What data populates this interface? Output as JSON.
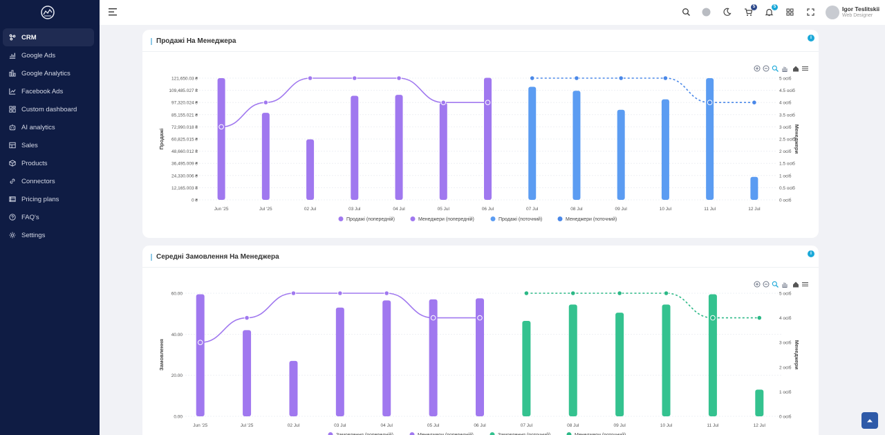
{
  "sidebar": {
    "items": [
      {
        "label": "CRM",
        "icon": "crm-icon",
        "active": true
      },
      {
        "label": "Google Ads",
        "icon": "bar-chart-icon"
      },
      {
        "label": "Google Analytics",
        "icon": "analytics-icon"
      },
      {
        "label": "Facebook Ads",
        "icon": "trend-icon"
      },
      {
        "label": "Custom dashboard",
        "icon": "dashboard-icon"
      },
      {
        "label": "AI analytics",
        "icon": "robot-icon"
      },
      {
        "label": "Sales",
        "icon": "sales-icon"
      },
      {
        "label": "Products",
        "icon": "box-icon"
      },
      {
        "label": "Connectors",
        "icon": "link-icon"
      },
      {
        "label": "Pricing plans",
        "icon": "pricing-icon"
      },
      {
        "label": "FAQ's",
        "icon": "question-icon"
      },
      {
        "label": "Settings",
        "icon": "gear-icon"
      }
    ]
  },
  "header": {
    "cart_badge": "5",
    "bell_badge": "5",
    "user_name": "Igor Teslitskii",
    "user_role": "Web Designer"
  },
  "chart_data": [
    {
      "type": "bar",
      "title": "Продажі На Менеджера",
      "ylabel": "Продажі",
      "y2label": "Менеджери",
      "categories": [
        "Jun '25",
        "Jul '25",
        "02 Jul",
        "03 Jul",
        "04 Jul",
        "05 Jul",
        "06 Jul",
        "07 Jul",
        "08 Jul",
        "09 Jul",
        "10 Jul",
        "11 Jul",
        "12 Jul"
      ],
      "y_ticks": [
        "0 ₴",
        "12,165.003 ₴",
        "24,330.006 ₴",
        "36,495.009 ₴",
        "48,660.012 ₴",
        "60,825.015 ₴",
        "72,990.018 ₴",
        "85,155.021 ₴",
        "97,320.024 ₴",
        "109,485.027 ₴",
        "121,650.03 ₴"
      ],
      "y2_ticks": [
        "0 осіб",
        "0.5 осіб",
        "1 осіб",
        "1.5 осіб",
        "2 осіб",
        "2.5 осіб",
        "3 осіб",
        "3.5 осіб",
        "4 осіб",
        "4.5 осіб",
        "5 осіб"
      ],
      "ylim": [
        0,
        121650.03
      ],
      "y2lim": [
        0,
        5
      ],
      "series": [
        {
          "name": "Продажі (попередній)",
          "kind": "bar",
          "color": "#a078ef",
          "values": [
            121650,
            87000,
            60500,
            104000,
            105000,
            97000,
            122000,
            null,
            null,
            null,
            null,
            null,
            null
          ]
        },
        {
          "name": "Менеджери (попередній)",
          "kind": "line",
          "color": "#a078ef",
          "values": [
            3,
            4,
            5,
            5,
            5,
            4,
            4,
            null,
            null,
            null,
            null,
            null,
            null
          ]
        },
        {
          "name": "Продажі (поточний)",
          "kind": "bar",
          "color": "#5b9cf2",
          "values": [
            null,
            null,
            null,
            null,
            null,
            null,
            null,
            113000,
            109000,
            90000,
            100500,
            121650,
            23000
          ]
        },
        {
          "name": "Менеджери (поточний)",
          "kind": "line",
          "color": "#4a88e8",
          "values": [
            null,
            null,
            null,
            null,
            null,
            null,
            null,
            5,
            5,
            5,
            5,
            4,
            4
          ]
        }
      ]
    },
    {
      "type": "bar",
      "title": "Середні Замовлення На Менеджера",
      "ylabel": "Замовлення",
      "y2label": "Менеджери",
      "categories": [
        "Jun '25",
        "Jul '25",
        "02 Jul",
        "03 Jul",
        "04 Jul",
        "05 Jul",
        "06 Jul",
        "07 Jul",
        "08 Jul",
        "09 Jul",
        "10 Jul",
        "11 Jul",
        "12 Jul"
      ],
      "y_ticks": [
        "0.00",
        "20.00",
        "40.00",
        "60.00"
      ],
      "y2_ticks": [
        "0 осіб",
        "1 осіб",
        "2 осіб",
        "3 осіб",
        "4 осіб",
        "5 осіб"
      ],
      "ylim": [
        0,
        60
      ],
      "y2lim": [
        0,
        5
      ],
      "series": [
        {
          "name": "Замовлення (попередній)",
          "kind": "bar",
          "color": "#a078ef",
          "values": [
            59.5,
            42,
            27,
            53,
            56.5,
            57,
            57.5,
            null,
            null,
            null,
            null,
            null,
            null
          ]
        },
        {
          "name": "Менеджери (попередній)",
          "kind": "line",
          "color": "#a078ef",
          "values": [
            3,
            4,
            5,
            5,
            5,
            4,
            4,
            null,
            null,
            null,
            null,
            null,
            null
          ]
        },
        {
          "name": "Замовлення (поточний)",
          "kind": "bar",
          "color": "#34c28f",
          "values": [
            null,
            null,
            null,
            null,
            null,
            null,
            null,
            46.5,
            54.5,
            50.5,
            54.5,
            59.5,
            13
          ]
        },
        {
          "name": "Менеджери (поточний)",
          "kind": "line",
          "color": "#2bb886",
          "values": [
            null,
            null,
            null,
            null,
            null,
            null,
            null,
            5,
            5,
            5,
            5,
            4,
            4
          ]
        }
      ]
    }
  ]
}
